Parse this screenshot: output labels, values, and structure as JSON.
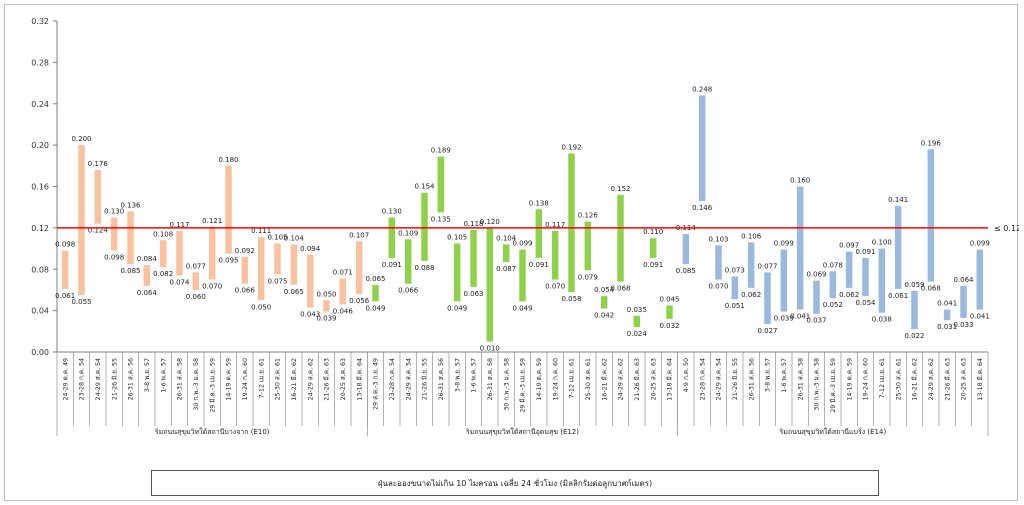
{
  "chart_data": {
    "type": "floating-bar",
    "title": "",
    "xlabel": "",
    "ylabel": "",
    "ylim": [
      0,
      0.32
    ],
    "yticks": [
      "0.00",
      "0.04",
      "0.08",
      "0.12",
      "0.16",
      "0.20",
      "0.24",
      "0.28",
      "0.32"
    ],
    "grid": false,
    "threshold": {
      "value": 0.12,
      "label": "≤ 0.12",
      "color": "#ff0000"
    },
    "caption": "ฝุ่นละอองขนาดไม่เกิน 10 ไมครอน เฉลี่ย 24 ชั่วโมง (มิลลิกรัมต่อลูกบาศก์เมตร)",
    "groups": [
      {
        "name": "ริมถนนสุขุมวิทใต้สถานีบางจาก (E10)",
        "color": "#f9c19d",
        "categories": [
          "24-29 ต.ค. 49",
          "23-28 ก.ค. 54",
          "24-29 ส.ค. 54",
          "21-26 มิ.ย. 55",
          "26-31 ส.ค. 56",
          "3-8 พ.ย. 57",
          "1-6 พ.ค. 57",
          "26-31 ส.ค. 58",
          "30 ก.พ.-3 ม.ค. 58",
          "29 มี.ค.-3 เม.ย. 59",
          "14-19 ต.ค. 59",
          "19-24 ก.ค. 60",
          "7-12 เม.ย. 61",
          "25-30 ส.ค. 61",
          "16-21 มี.ค. 62",
          "24-29 ส.ค. 62",
          "21-26 มี.ค. 63",
          "20-25 ส.ค. 63",
          "13-18 มี.ค. 64"
        ],
        "max": [
          0.098,
          0.2,
          0.176,
          0.13,
          0.136,
          0.084,
          0.108,
          0.117,
          0.077,
          0.121,
          0.18,
          0.092,
          0.111,
          0.105,
          0.104,
          0.094,
          0.05,
          0.071,
          0.107
        ],
        "min": [
          0.061,
          0.055,
          0.124,
          0.098,
          0.085,
          0.064,
          0.082,
          0.074,
          0.06,
          0.07,
          0.095,
          0.066,
          0.05,
          0.075,
          0.065,
          0.043,
          0.039,
          0.046,
          0.056
        ]
      },
      {
        "name": "ริมถนนสุขุมวิทใต้สถานีอุดมสุข (E12)",
        "color": "#8ed24a",
        "categories": [
          "29 ส.ค.-3 ก.ย. 49",
          "23-28 ก.ค. 54",
          "24-29 ส.ค. 54",
          "21-26 มิ.ย. 55",
          "26-31 ส.ค. 56",
          "3-8 พ.ย. 57",
          "1-6 พ.ค. 57",
          "26-31 ส.ค. 58",
          "30 ก.พ.-3 ม.ค. 58",
          "29 มี.ค.-3 เม.ย. 59",
          "14-19 ต.ค. 59",
          "19-24 ก.ค. 60",
          "7-12 เม.ย. 61",
          "25-30 ส.ค. 61",
          "16-21 มี.ค. 62",
          "24-29 ส.ค. 62",
          "21-26 มี.ค. 63",
          "20-25 ส.ค. 63",
          "13-18 มี.ค. 64"
        ],
        "max": [
          0.065,
          0.13,
          0.109,
          0.154,
          0.189,
          0.105,
          0.118,
          0.12,
          0.104,
          0.099,
          0.138,
          0.117,
          0.192,
          0.126,
          0.054,
          0.152,
          0.035,
          0.11,
          0.045
        ],
        "min": [
          0.049,
          0.091,
          0.066,
          0.088,
          0.135,
          0.049,
          0.063,
          0.01,
          0.087,
          0.049,
          0.091,
          0.07,
          0.058,
          0.079,
          0.042,
          0.068,
          0.024,
          0.091,
          0.032
        ]
      },
      {
        "name": "ริมถนนสุขุมวิทใต้สถานีแบริ่ง (E14)",
        "color": "#9ab9de",
        "categories": [
          "4-9 ก.ค. 50",
          "23-28 ก.ค. 54",
          "24-29 ส.ค. 54",
          "21-26 มิ.ย. 55",
          "26-31 ส.ค. 56",
          "3-8 พ.ย. 57",
          "1-6 พ.ค. 57",
          "26-31 ส.ค. 58",
          "30 ก.พ.-3 ม.ค. 58",
          "29 มี.ค.-3 เม.ย. 59",
          "14-19 ต.ค. 59",
          "19-24 ก.ค. 60",
          "7-12 เม.ย. 61",
          "25-30 ส.ค. 61",
          "16-21 มี.ค. 62",
          "24-29 ส.ค. 62",
          "21-26 มี.ค. 63",
          "20-25 ส.ค. 63",
          "13-18 มี.ค. 64"
        ],
        "max": [
          0.114,
          0.248,
          0.103,
          0.073,
          0.106,
          0.077,
          0.099,
          0.16,
          0.069,
          0.078,
          0.097,
          0.091,
          0.1,
          0.141,
          0.059,
          0.196,
          0.041,
          0.064,
          0.099
        ],
        "min": [
          0.085,
          0.146,
          0.07,
          0.051,
          0.062,
          0.027,
          0.039,
          0.041,
          0.037,
          0.052,
          0.062,
          0.054,
          0.038,
          0.061,
          0.022,
          0.068,
          0.031,
          0.033,
          0.041
        ]
      }
    ]
  }
}
